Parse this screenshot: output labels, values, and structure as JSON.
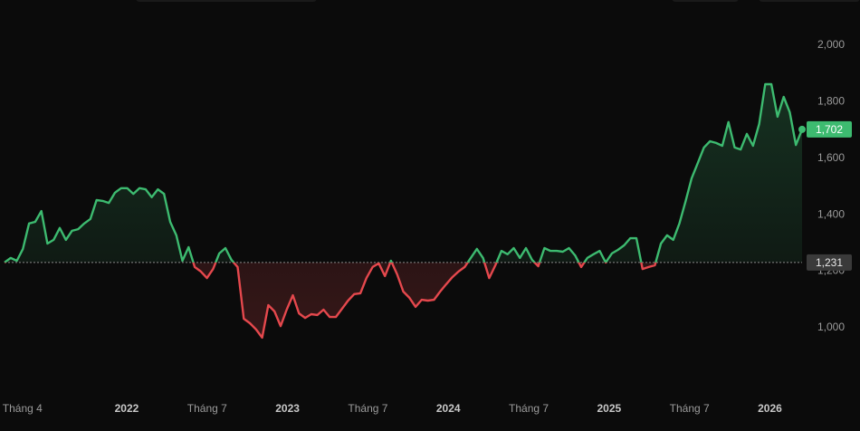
{
  "chart_data": {
    "type": "line",
    "series": [
      {
        "color": "#3dbb70",
        "color_below": "#e5484d",
        "values": [
          1231,
          1247,
          1237,
          1279,
          1369,
          1375,
          1413,
          1298,
          1311,
          1353,
          1311,
          1343,
          1349,
          1369,
          1385,
          1452,
          1449,
          1442,
          1478,
          1494,
          1494,
          1474,
          1494,
          1490,
          1462,
          1490,
          1474,
          1375,
          1327,
          1237,
          1285,
          1215,
          1199,
          1176,
          1208,
          1263,
          1282,
          1240,
          1215,
          1032,
          1016,
          994,
          965,
          1080,
          1058,
          1006,
          1064,
          1115,
          1051,
          1035,
          1048,
          1045,
          1064,
          1038,
          1038,
          1067,
          1096,
          1119,
          1122,
          1176,
          1215,
          1228,
          1183,
          1237,
          1189,
          1128,
          1106,
          1074,
          1099,
          1096,
          1099,
          1128,
          1154,
          1179,
          1199,
          1215,
          1247,
          1279,
          1247,
          1176,
          1221,
          1272,
          1260,
          1282,
          1247,
          1282,
          1240,
          1218,
          1282,
          1272,
          1272,
          1269,
          1282,
          1256,
          1215,
          1247,
          1260,
          1272,
          1231,
          1263,
          1276,
          1292,
          1317,
          1317,
          1208,
          1215,
          1221,
          1298,
          1327,
          1311,
          1369,
          1446,
          1529,
          1583,
          1638,
          1660,
          1654,
          1644,
          1728,
          1638,
          1631,
          1686,
          1644,
          1721,
          1862,
          1862,
          1747,
          1817,
          1763,
          1647,
          1702
        ]
      }
    ],
    "baseline": {
      "value": 1231,
      "label": "1,231"
    },
    "last": {
      "value": 1702,
      "label": "1,702"
    },
    "xlim": [
      2021.24,
      2026.2
    ],
    "xticks": [
      {
        "value": 2021.25,
        "label": "Tháng 4"
      },
      {
        "value": 2022,
        "label": "2022"
      },
      {
        "value": 2022.5,
        "label": "Tháng 7"
      },
      {
        "value": 2023,
        "label": "2023"
      },
      {
        "value": 2023.5,
        "label": "Tháng 7"
      },
      {
        "value": 2024,
        "label": "2024"
      },
      {
        "value": 2024.5,
        "label": "Tháng 7"
      },
      {
        "value": 2025,
        "label": "2025"
      },
      {
        "value": 2025.5,
        "label": "Tháng 7"
      },
      {
        "value": 2026,
        "label": "2026"
      }
    ],
    "ylim": [
      766,
      2160
    ],
    "yticks": [
      {
        "value": 1000,
        "label": "1,000"
      },
      {
        "value": 1200,
        "label": "1,200"
      },
      {
        "value": 1400,
        "label": "1,400"
      },
      {
        "value": 1600,
        "label": "1,600"
      },
      {
        "value": 1800,
        "label": "1,800"
      },
      {
        "value": 2000,
        "label": "2,000"
      }
    ]
  }
}
